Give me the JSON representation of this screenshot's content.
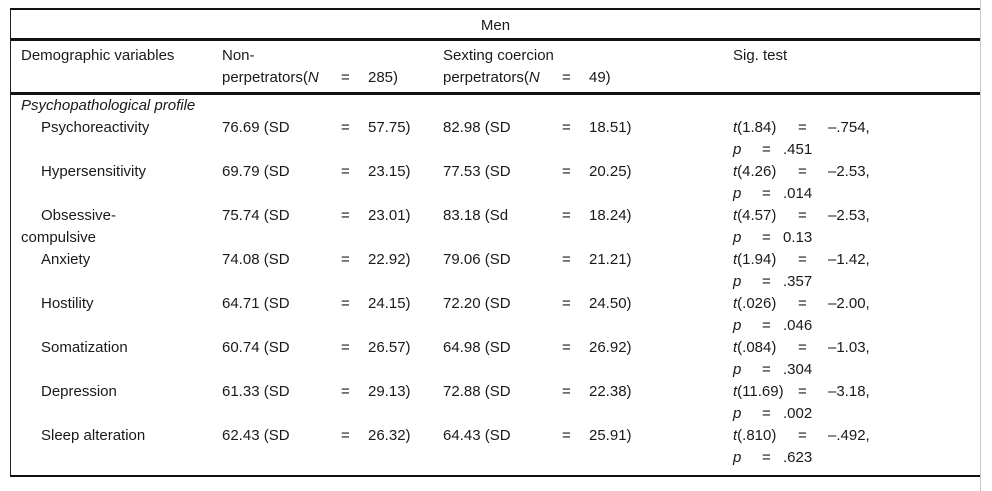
{
  "table": {
    "group_header": "Men",
    "header": {
      "col1": "Demographic variables",
      "col2": {
        "line1": "Non-",
        "line2_pre": "perpetrators(",
        "n_sym": "N",
        "eq": "=",
        "n_val": "285)"
      },
      "col3": {
        "line1": "Sexting coercion",
        "line2_pre": "perpetrators(",
        "n_sym": "N",
        "eq": "=",
        "n_val": "49)"
      },
      "col4": "Sig. test"
    },
    "section_label": "Psychopathological profile",
    "rows": [
      {
        "label": "Psychoreactivity",
        "np": {
          "mean": "76.69 (SD",
          "eq": "=",
          "sd": "57.75)"
        },
        "sc": {
          "mean": "82.98 (SD",
          "eq": "=",
          "sd": "18.51)"
        },
        "sig": {
          "t_sym": "t",
          "t_args": "(1.84)",
          "eq1": "=",
          "t_val": "–.754,",
          "p_sym": "p",
          "eq2": "=",
          "p_val": ".451"
        }
      },
      {
        "label": "Hypersensitivity",
        "np": {
          "mean": "69.79 (SD",
          "eq": "=",
          "sd": "23.15)"
        },
        "sc": {
          "mean": "77.53 (SD",
          "eq": "=",
          "sd": "20.25)"
        },
        "sig": {
          "t_sym": "t",
          "t_args": "(4.26)",
          "eq1": "=",
          "t_val": "–2.53,",
          "p_sym": "p",
          "eq2": "=",
          "p_val": ".014"
        }
      },
      {
        "label": "Obsessive-\ncompulsive",
        "np": {
          "mean": "75.74 (SD",
          "eq": "=",
          "sd": "23.01)"
        },
        "sc": {
          "mean": "83.18 (Sd",
          "eq": "=",
          "sd": "18.24)"
        },
        "sig": {
          "t_sym": "t",
          "t_args": "(4.57)",
          "eq1": "=",
          "t_val": "–2.53,",
          "p_sym": "p",
          "eq2": "=",
          "p_val": "0.13"
        }
      },
      {
        "label": "Anxiety",
        "np": {
          "mean": "74.08 (SD",
          "eq": "=",
          "sd": "22.92)"
        },
        "sc": {
          "mean": "79.06 (SD",
          "eq": "=",
          "sd": "21.21)"
        },
        "sig": {
          "t_sym": "t",
          "t_args": "(1.94)",
          "eq1": "=",
          "t_val": "–1.42,",
          "p_sym": "p",
          "eq2": "=",
          "p_val": ".357"
        }
      },
      {
        "label": "Hostility",
        "np": {
          "mean": "64.71 (SD",
          "eq": "=",
          "sd": "24.15)"
        },
        "sc": {
          "mean": "72.20 (SD",
          "eq": "=",
          "sd": "24.50)"
        },
        "sig": {
          "t_sym": "t",
          "t_args": "(.026)",
          "eq1": "=",
          "t_val": "–2.00,",
          "p_sym": "p",
          "eq2": "=",
          "p_val": ".046"
        }
      },
      {
        "label": "Somatization",
        "np": {
          "mean": "60.74 (SD",
          "eq": "=",
          "sd": "26.57)"
        },
        "sc": {
          "mean": "64.98 (SD",
          "eq": "=",
          "sd": "26.92)"
        },
        "sig": {
          "t_sym": "t",
          "t_args": "(.084)",
          "eq1": "=",
          "t_val": "–1.03,",
          "p_sym": "p",
          "eq2": "=",
          "p_val": ".304"
        }
      },
      {
        "label": "Depression",
        "np": {
          "mean": "61.33 (SD",
          "eq": "=",
          "sd": "29.13)"
        },
        "sc": {
          "mean": "72.88 (SD",
          "eq": "=",
          "sd": "22.38)"
        },
        "sig": {
          "t_sym": "t",
          "t_args": "(11.69)",
          "eq1": "=",
          "t_val": "–3.18,",
          "p_sym": "p",
          "eq2": "=",
          "p_val": ".002"
        }
      },
      {
        "label": "Sleep alteration",
        "np": {
          "mean": "62.43 (SD",
          "eq": "=",
          "sd": "26.32)"
        },
        "sc": {
          "mean": "64.43 (SD",
          "eq": "=",
          "sd": "25.91)"
        },
        "sig": {
          "t_sym": "t",
          "t_args": "(.810)",
          "eq1": "=",
          "t_val": "–.492,",
          "p_sym": "p",
          "eq2": "=",
          "p_val": ".623"
        }
      }
    ],
    "rule_color": "#111111",
    "text_color": "#1a1a1a"
  }
}
